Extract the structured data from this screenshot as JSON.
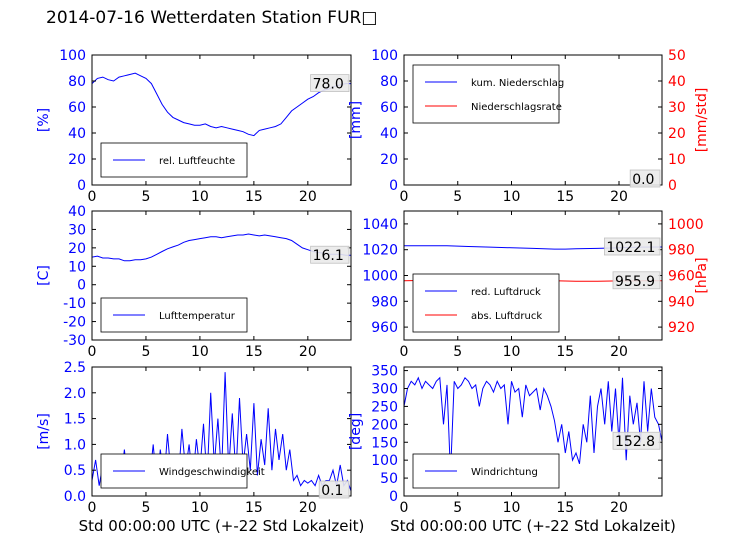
{
  "title": "2014-07-16 Wetterdaten Station FUR□",
  "xlabel": "Std 00:00:00 UTC (+-22 Std Lokalzeit)",
  "colors": {
    "primary": "#0000ff",
    "secondary": "#ff0000",
    "frame": "#000000"
  },
  "chart_data": [
    {
      "type": "line",
      "ylabel": "[%]",
      "xlim": [
        0,
        24
      ],
      "ylim": [
        0,
        100
      ],
      "yticks": [
        0,
        20,
        40,
        60,
        80,
        100
      ],
      "legend": "lower-left",
      "series": [
        {
          "name": "rel. Luftfeuchte",
          "color": "#0000ff",
          "x": [
            0,
            0.5,
            1,
            1.5,
            2,
            2.5,
            3,
            3.5,
            4,
            4.5,
            5,
            5.5,
            6,
            6.5,
            7,
            7.5,
            8,
            8.5,
            9,
            9.5,
            10,
            10.5,
            11,
            11.5,
            12,
            12.5,
            13,
            13.5,
            14,
            14.5,
            15,
            15.5,
            16,
            16.5,
            17,
            17.5,
            18,
            18.5,
            19,
            19.5,
            20,
            20.5,
            21,
            21.5,
            22,
            22.5,
            23,
            23.5,
            24
          ],
          "y": [
            78,
            82,
            83,
            81,
            80,
            83,
            84,
            85,
            86,
            84,
            82,
            78,
            70,
            62,
            56,
            52,
            50,
            48,
            47,
            46,
            46,
            47,
            45,
            44,
            45,
            44,
            43,
            42,
            41,
            39,
            38,
            42,
            43,
            44,
            45,
            47,
            52,
            57,
            60,
            63,
            66,
            68,
            71,
            73,
            74,
            76,
            77,
            78,
            78
          ]
        }
      ],
      "annotation": "78.0"
    },
    {
      "type": "line",
      "ylabel": "[mm]",
      "y2label": "[mm/std]",
      "xlim": [
        0,
        24
      ],
      "ylim": [
        0,
        100
      ],
      "y2lim": [
        0,
        50
      ],
      "yticks": [
        0,
        20,
        40,
        60,
        80,
        100
      ],
      "y2ticks": [
        0,
        10,
        20,
        30,
        40,
        50
      ],
      "legend": "upper-left",
      "series": [
        {
          "name": "kum. Niederschlag",
          "color": "#0000ff",
          "x": [
            0,
            24
          ],
          "y": [
            0,
            0
          ]
        },
        {
          "name": "Niederschlagsrate",
          "color": "#ff0000",
          "x": [
            0,
            24
          ],
          "y": [
            0,
            0
          ],
          "axis": "right"
        }
      ],
      "annotation": "0.0"
    },
    {
      "type": "line",
      "ylabel": "[C]",
      "xlim": [
        0,
        24
      ],
      "ylim": [
        -30,
        40
      ],
      "yticks": [
        -30,
        -20,
        -10,
        0,
        10,
        20,
        30,
        40
      ],
      "legend": "lower-left",
      "series": [
        {
          "name": "Lufttemperatur",
          "color": "#0000ff",
          "x": [
            0,
            0.5,
            1,
            1.5,
            2,
            2.5,
            3,
            3.5,
            4,
            4.5,
            5,
            5.5,
            6,
            6.5,
            7,
            7.5,
            8,
            8.5,
            9,
            9.5,
            10,
            10.5,
            11,
            11.5,
            12,
            12.5,
            13,
            13.5,
            14,
            14.5,
            15,
            15.5,
            16,
            16.5,
            17,
            17.5,
            18,
            18.5,
            19,
            19.5,
            20,
            20.5,
            21,
            21.5,
            22,
            22.5,
            23,
            23.5,
            24
          ],
          "y": [
            15,
            15.5,
            14.5,
            14.5,
            14,
            14,
            13,
            13,
            13.5,
            13.5,
            14,
            15,
            16.5,
            18,
            19.5,
            20.5,
            21.5,
            23,
            24,
            24.5,
            25,
            25.5,
            26,
            26,
            25.5,
            26,
            26.5,
            27,
            27,
            27.5,
            27,
            26.5,
            27,
            26.5,
            26,
            25.5,
            25,
            24,
            22,
            20,
            19,
            18,
            17.5,
            17,
            16.5,
            16.5,
            16.5,
            16,
            16
          ]
        }
      ],
      "annotation": "16.1"
    },
    {
      "type": "line",
      "y2label": "[hPa]",
      "xlim": [
        0,
        24
      ],
      "ylim": [
        950,
        1050
      ],
      "y2lim": [
        910,
        1010
      ],
      "yticks": [
        960,
        980,
        1000,
        1020,
        1040
      ],
      "y2ticks": [
        920,
        940,
        960,
        980,
        1000
      ],
      "legend": "lower-left",
      "series": [
        {
          "name": "red. Luftdruck",
          "color": "#0000ff",
          "x": [
            0,
            2,
            4,
            6,
            8,
            10,
            12,
            14,
            15,
            16,
            18,
            20,
            22,
            24
          ],
          "y": [
            1023,
            1023,
            1023,
            1022.5,
            1022,
            1021.5,
            1021,
            1020.5,
            1020.5,
            1020.7,
            1021,
            1021.5,
            1022,
            1022.1
          ]
        },
        {
          "name": "abs. Luftdruck",
          "color": "#ff0000",
          "axis": "right",
          "x": [
            0,
            2,
            4,
            6,
            8,
            10,
            12,
            14,
            15,
            16,
            18,
            20,
            22,
            24
          ],
          "y": [
            956,
            956.2,
            956.3,
            956.5,
            956.8,
            956.5,
            956.2,
            956,
            955.7,
            955.6,
            955.6,
            955.8,
            955.9,
            955.9
          ]
        }
      ],
      "annotations": [
        "1022.1",
        "955.9"
      ]
    },
    {
      "type": "line",
      "ylabel": "[m/s]",
      "xlim": [
        0,
        24
      ],
      "ylim": [
        0,
        2.5
      ],
      "yticks": [
        0.0,
        0.5,
        1.0,
        1.5,
        2.0,
        2.5
      ],
      "legend": "lower-left",
      "series": [
        {
          "name": "Windgeschwindigkeit",
          "color": "#0000ff",
          "x": [
            0,
            0.33,
            0.67,
            1,
            1.33,
            1.67,
            2,
            2.33,
            2.67,
            3,
            3.33,
            3.67,
            4,
            4.33,
            4.67,
            5,
            5.33,
            5.67,
            6,
            6.33,
            6.67,
            7,
            7.33,
            7.67,
            8,
            8.33,
            8.67,
            9,
            9.33,
            9.67,
            10,
            10.33,
            10.67,
            11,
            11.33,
            11.67,
            12,
            12.33,
            12.67,
            13,
            13.33,
            13.67,
            14,
            14.33,
            14.67,
            15,
            15.33,
            15.67,
            16,
            16.33,
            16.67,
            17,
            17.33,
            17.67,
            18,
            18.33,
            18.67,
            19,
            19.33,
            19.67,
            20,
            20.33,
            20.67,
            21,
            21.33,
            21.67,
            22,
            22.33,
            22.67,
            23,
            23.33,
            23.67,
            24
          ],
          "y": [
            0.3,
            0.7,
            0.2,
            0.6,
            0.3,
            0.8,
            0.2,
            0.7,
            0.3,
            0.9,
            0.2,
            0.6,
            0.4,
            0.8,
            0.2,
            0.6,
            0.3,
            1.0,
            0.2,
            0.9,
            0.3,
            1.2,
            0.4,
            0.8,
            0.3,
            1.3,
            0.5,
            1.0,
            0.3,
            1.1,
            0.5,
            1.4,
            0.3,
            2.0,
            0.6,
            1.5,
            0.4,
            2.4,
            0.5,
            1.6,
            0.4,
            1.9,
            0.6,
            1.2,
            0.5,
            1.8,
            0.4,
            1.1,
            0.6,
            1.7,
            0.5,
            1.3,
            0.7,
            1.2,
            0.5,
            0.9,
            0.3,
            0.4,
            0.2,
            0.3,
            0.25,
            0.3,
            0.2,
            0.4,
            0.2,
            0.3,
            0.3,
            0.5,
            0.2,
            0.6,
            0.2,
            0.3,
            0.1
          ]
        }
      ],
      "annotation": "0.1"
    },
    {
      "type": "line",
      "ylabel": "[deg]",
      "xlim": [
        0,
        24
      ],
      "ylim": [
        0,
        360
      ],
      "yticks": [
        0,
        50,
        100,
        150,
        200,
        250,
        300,
        350
      ],
      "legend": "lower-left",
      "series": [
        {
          "name": "Windrichtung",
          "color": "#0000ff",
          "x": [
            0,
            0.33,
            0.67,
            1,
            1.33,
            1.67,
            2,
            2.33,
            2.67,
            3,
            3.33,
            3.67,
            4,
            4.33,
            4.67,
            5,
            5.33,
            5.67,
            6,
            6.33,
            6.67,
            7,
            7.33,
            7.67,
            8,
            8.33,
            8.67,
            9,
            9.33,
            9.67,
            10,
            10.33,
            10.67,
            11,
            11.33,
            11.67,
            12,
            12.33,
            12.67,
            13,
            13.33,
            13.67,
            14,
            14.33,
            14.67,
            15,
            15.33,
            15.67,
            16,
            16.33,
            16.67,
            17,
            17.33,
            17.67,
            18,
            18.33,
            18.67,
            19,
            19.33,
            19.67,
            20,
            20.33,
            20.67,
            21,
            21.33,
            21.67,
            22,
            22.33,
            22.67,
            23,
            23.33,
            23.67,
            24
          ],
          "y": [
            250,
            300,
            320,
            310,
            330,
            300,
            320,
            310,
            300,
            320,
            330,
            200,
            310,
            60,
            320,
            300,
            310,
            330,
            320,
            300,
            310,
            250,
            300,
            320,
            310,
            290,
            320,
            300,
            310,
            200,
            320,
            290,
            300,
            220,
            310,
            280,
            290,
            300,
            240,
            300,
            280,
            250,
            210,
            150,
            200,
            120,
            180,
            100,
            120,
            90,
            200,
            150,
            280,
            120,
            250,
            300,
            200,
            320,
            180,
            300,
            150,
            330,
            100,
            280,
            200,
            260,
            150,
            320,
            180,
            300,
            220,
            200,
            152.8
          ]
        }
      ],
      "annotation": "152.8"
    }
  ]
}
